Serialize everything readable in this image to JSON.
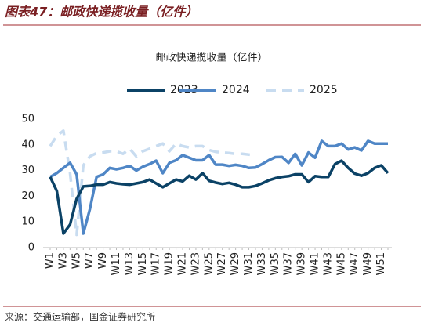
{
  "header": "图表47：邮政快递揽收量（亿件）",
  "source": "来源：交通运输部，国金证券研究所",
  "chart_data": {
    "type": "line",
    "title": "邮政快递揽收量（亿件）",
    "legend": "top",
    "categories": [
      "W1",
      null,
      "W3",
      null,
      "W5",
      null,
      "W7",
      null,
      "W9",
      null,
      "W11",
      null,
      "W13",
      null,
      "W15",
      null,
      "W17",
      null,
      "W19",
      null,
      "W21",
      null,
      "W23",
      null,
      "W25",
      null,
      "W27",
      null,
      "W29",
      null,
      "W31",
      null,
      "W33",
      null,
      "W35",
      null,
      "W37",
      null,
      "W39",
      null,
      "W41",
      null,
      "W43",
      null,
      "W45",
      null,
      "W47",
      null,
      "W49",
      null,
      "W51",
      null
    ],
    "ylim": [
      0,
      50
    ],
    "yticks": [
      0,
      10,
      20,
      30,
      40,
      50
    ],
    "series": [
      {
        "name": "2023",
        "color": "#0b4266",
        "dash": false,
        "values": [
          27.5,
          22,
          5.5,
          9,
          19,
          23.8,
          24,
          24.5,
          24.5,
          25.5,
          25,
          24.7,
          24.5,
          25,
          25.5,
          26.5,
          25,
          23.5,
          25,
          26.5,
          25.8,
          28,
          26.5,
          29,
          26,
          25.3,
          24.8,
          25.2,
          24.5,
          23.5,
          23.5,
          24,
          25,
          26.2,
          27,
          27.5,
          27.8,
          28.5,
          28.5,
          25.5,
          27.8,
          27.5,
          27.5,
          32.5,
          33.8,
          31,
          28.8,
          28,
          29,
          31,
          32,
          29
        ]
      },
      {
        "name": "2024",
        "color": "#4f86c6",
        "dash": false,
        "values": [
          27.5,
          29,
          31,
          33,
          28.5,
          5.5,
          15,
          27.5,
          28.5,
          31,
          30.5,
          31,
          31.8,
          30,
          31.5,
          32.5,
          33.8,
          29,
          33,
          34,
          36,
          35,
          34,
          34,
          36,
          32.3,
          32.3,
          31.8,
          32.2,
          31.8,
          31,
          31.2,
          32.5,
          34,
          35.2,
          35.3,
          33,
          36.5,
          32,
          37,
          35,
          41.5,
          39.5,
          39.5,
          40.5,
          38.2,
          39,
          37.8,
          41.5,
          40.5,
          40.5,
          40.5
        ]
      },
      {
        "name": "2025",
        "color": "#c8dcf0",
        "dash": true,
        "values": [
          39.5,
          43.5,
          45.5,
          29,
          5,
          32,
          35.5,
          36.8,
          37,
          37.5,
          37.5,
          36.5,
          38.5,
          35.5,
          37.5,
          38.5,
          39.5,
          40.5,
          37.5,
          40.5,
          39.5,
          39,
          39.5,
          39.5,
          38,
          37.3,
          37,
          36.8,
          36.5,
          36.5,
          36.2,
          36,
          null,
          null,
          null,
          null,
          null,
          null,
          null,
          null,
          null,
          null,
          null,
          null,
          null,
          null,
          null,
          null,
          null,
          null,
          null,
          null
        ]
      }
    ]
  }
}
